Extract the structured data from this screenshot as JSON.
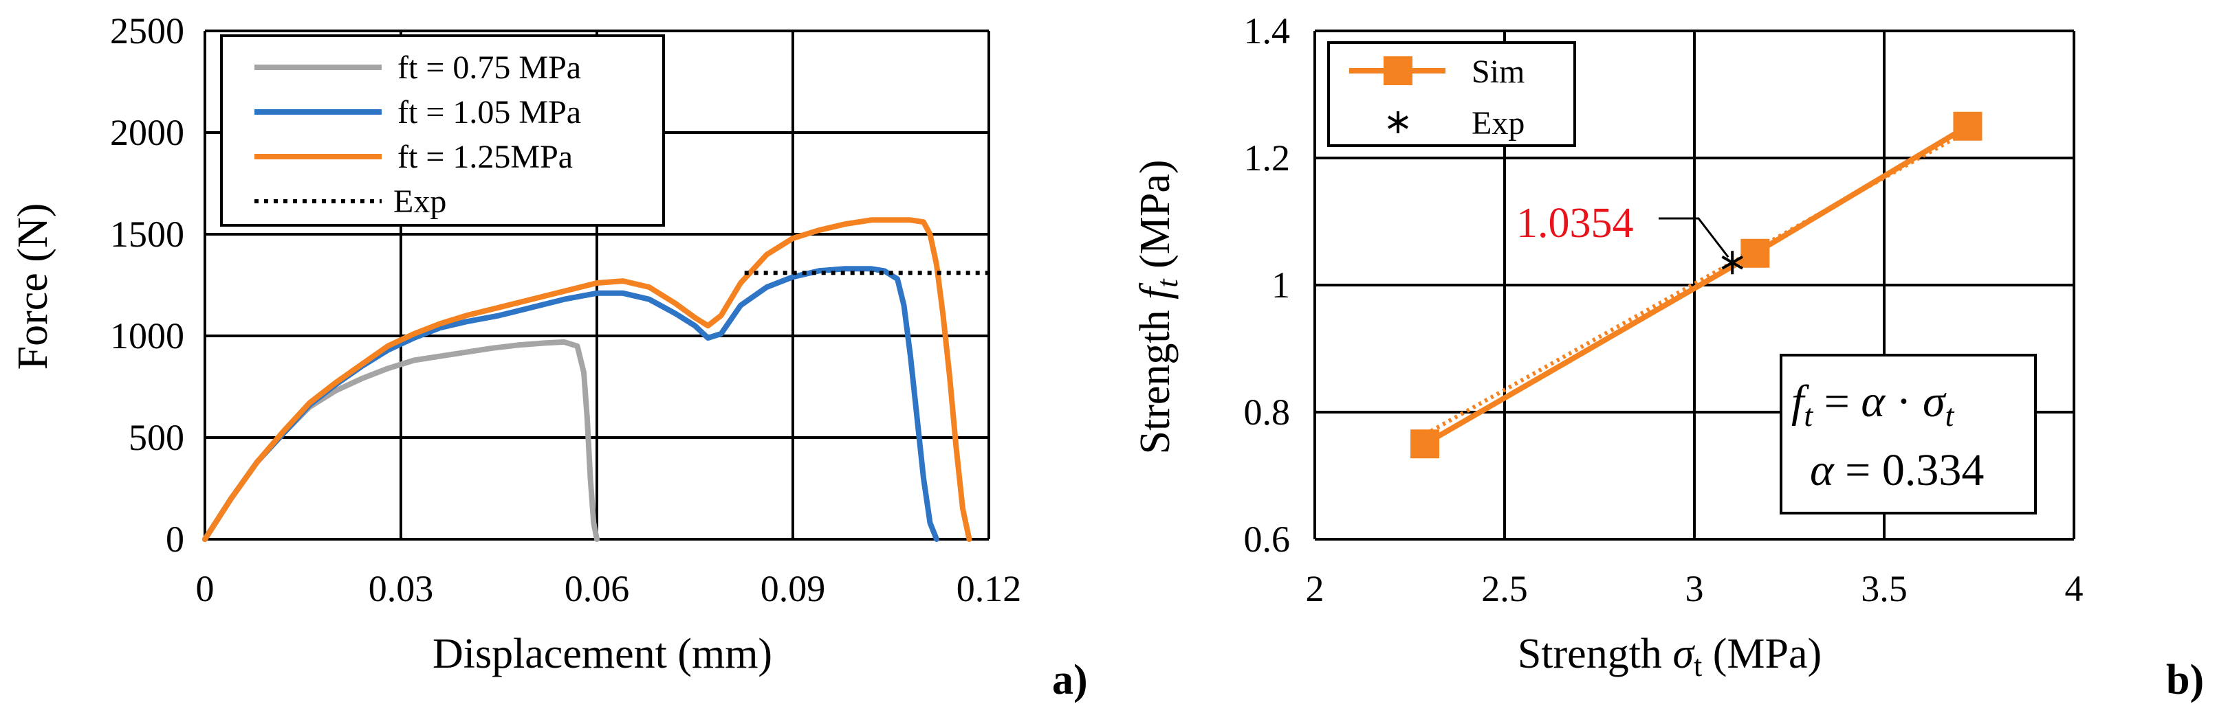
{
  "chart_data": [
    {
      "id": "a",
      "type": "line",
      "panel_label": "a)",
      "xlabel": "Displacement (mm)",
      "ylabel": "Force (N)",
      "xlim": [
        0,
        0.12
      ],
      "ylim": [
        0,
        2500
      ],
      "xticks": [
        0,
        0.03,
        0.06,
        0.09,
        0.12
      ],
      "xtick_labels": [
        "0",
        "0.03",
        "0.06",
        "0.09",
        "0.12"
      ],
      "yticks": [
        0,
        500,
        1000,
        1500,
        2000,
        2500
      ],
      "ytick_labels": [
        "0",
        "500",
        "1000",
        "1500",
        "2000",
        "2500"
      ],
      "grid": true,
      "legend_position": "top-left",
      "series": [
        {
          "name": "ft = 0.75 MPa",
          "color": "#a5a5a5",
          "style": "solid",
          "x": [
            0,
            0.004,
            0.008,
            0.012,
            0.016,
            0.02,
            0.024,
            0.028,
            0.032,
            0.036,
            0.04,
            0.044,
            0.048,
            0.052,
            0.055,
            0.057,
            0.058,
            0.0585,
            0.059,
            0.0595,
            0.06
          ],
          "y": [
            0,
            200,
            380,
            520,
            650,
            730,
            790,
            840,
            880,
            900,
            920,
            940,
            955,
            965,
            970,
            950,
            820,
            600,
            300,
            80,
            0
          ]
        },
        {
          "name": "ft = 1.05 MPa",
          "color": "#2e75c6",
          "style": "solid",
          "x": [
            0,
            0.004,
            0.008,
            0.012,
            0.016,
            0.02,
            0.024,
            0.028,
            0.032,
            0.036,
            0.04,
            0.045,
            0.05,
            0.055,
            0.06,
            0.064,
            0.068,
            0.072,
            0.075,
            0.077,
            0.079,
            0.082,
            0.086,
            0.09,
            0.094,
            0.098,
            0.102,
            0.104,
            0.106,
            0.107,
            0.108,
            0.109,
            0.11,
            0.111,
            0.112
          ],
          "y": [
            0,
            200,
            380,
            520,
            660,
            760,
            850,
            930,
            990,
            1040,
            1070,
            1100,
            1140,
            1180,
            1210,
            1210,
            1180,
            1110,
            1050,
            990,
            1010,
            1150,
            1240,
            1290,
            1320,
            1330,
            1330,
            1320,
            1280,
            1150,
            900,
            600,
            300,
            80,
            0
          ]
        },
        {
          "name": "ft = 1.25MPa",
          "color": "#f58220",
          "style": "solid",
          "x": [
            0,
            0.004,
            0.008,
            0.012,
            0.016,
            0.02,
            0.024,
            0.028,
            0.032,
            0.036,
            0.04,
            0.045,
            0.05,
            0.055,
            0.06,
            0.064,
            0.068,
            0.072,
            0.075,
            0.077,
            0.079,
            0.082,
            0.086,
            0.09,
            0.094,
            0.098,
            0.102,
            0.106,
            0.108,
            0.11,
            0.111,
            0.112,
            0.113,
            0.114,
            0.115,
            0.116,
            0.117
          ],
          "y": [
            0,
            200,
            380,
            530,
            670,
            770,
            860,
            950,
            1010,
            1060,
            1100,
            1140,
            1180,
            1220,
            1260,
            1270,
            1240,
            1160,
            1090,
            1050,
            1100,
            1260,
            1400,
            1480,
            1520,
            1550,
            1570,
            1570,
            1570,
            1560,
            1500,
            1350,
            1100,
            800,
            450,
            150,
            0
          ]
        },
        {
          "name": "Exp",
          "color": "#000000",
          "style": "dotted",
          "x": [
            0.0826,
            0.12
          ],
          "y": [
            1310,
            1310
          ]
        }
      ]
    },
    {
      "id": "b",
      "type": "scatter",
      "panel_label": "b)",
      "xlabel_prefix": "Strength ",
      "xlabel_symbol": "σ",
      "xlabel_sub": "t",
      "xlabel_suffix": " (MPa)",
      "ylabel_prefix": "Strength ",
      "ylabel_symbol": "f",
      "ylabel_sub": "t",
      "ylabel_suffix": " (MPa)",
      "xlim": [
        2,
        4
      ],
      "ylim": [
        0.6,
        1.4
      ],
      "xticks": [
        2,
        2.5,
        3,
        3.5,
        4
      ],
      "xtick_labels": [
        "2",
        "2.5",
        "3",
        "3.5",
        "4"
      ],
      "yticks": [
        0.6,
        0.8,
        1.0,
        1.2,
        1.4
      ],
      "ytick_labels": [
        "0.6",
        "0.8",
        "1",
        "1.2",
        "1.4"
      ],
      "grid": true,
      "legend_position": "top-left",
      "series": [
        {
          "name": "Sim",
          "color": "#f58220",
          "marker": "square",
          "line": "solid",
          "x": [
            2.29,
            3.16,
            3.72
          ],
          "y": [
            0.75,
            1.05,
            1.25
          ]
        },
        {
          "name": "Exp",
          "color": "#000000",
          "marker": "asterisk",
          "x": [
            3.1
          ],
          "y": [
            1.0354
          ]
        }
      ],
      "trendline": {
        "slope": 0.334,
        "x": [
          2.29,
          3.72
        ],
        "color": "#f58220",
        "style": "dotted"
      },
      "annotation": {
        "text": "1.0354",
        "x": 3.1,
        "y": 1.0354,
        "color": "#e8141b"
      },
      "equation": {
        "line1_lhs": "f",
        "line1_lhs_sub": "t",
        "line1_eq": " = ",
        "line1_alpha": "α",
        "line1_dot": " · ",
        "line1_sigma": "σ",
        "line1_sigma_sub": "t",
        "line2_alpha": "α",
        "line2_value": " = 0.334"
      }
    }
  ]
}
